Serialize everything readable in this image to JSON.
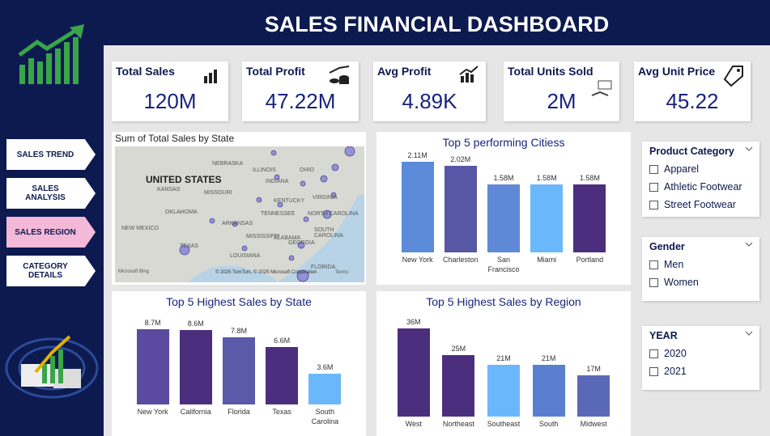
{
  "header": {
    "title": "SALES FINANCIAL DASHBOARD"
  },
  "nav": [
    "SALES TREND",
    "SALES ANALYSIS",
    "SALES REGION",
    "CATEGORY DETAILS"
  ],
  "kpis": [
    {
      "label": "Total Sales",
      "value": "120M"
    },
    {
      "label": "Total Profit",
      "value": "47.22M"
    },
    {
      "label": "Avg Profit",
      "value": "4.89K"
    },
    {
      "label": "Total Units Sold",
      "value": "2M"
    },
    {
      "label": "Avg Unit Price",
      "value": "45.22"
    }
  ],
  "map": {
    "title": "Sum of Total Sales by State",
    "country": "UNITED STATES",
    "states": [
      "NEBRASKA",
      "ILLINOIS",
      "OHIO",
      "INDIANA",
      "KANSAS",
      "MISSOURI",
      "KENTUCKY",
      "VIRGINIA",
      "TENNESSEE",
      "OKLAHOMA",
      "NORTH CAROLINA",
      "ARKANSAS",
      "NEW MEXICO",
      "SOUTH CAROLINA",
      "MISSISSIPPI",
      "ALABAMA",
      "GEORGIA",
      "TEXAS",
      "LOUISIANA",
      "FLORIDA"
    ],
    "logo": "Microsoft Bing",
    "credit": "© 2025 TomTom, © 2025 Microsoft Corporation",
    "terms": "Terms"
  },
  "chart_data": [
    {
      "type": "bar",
      "title": "Top 5 performing Citiess",
      "categories": [
        "New York",
        "Charleston",
        "San Francisco",
        "Miami",
        "Portland"
      ],
      "values": [
        2.11,
        2.02,
        1.58,
        1.58,
        1.58
      ],
      "value_labels": [
        "2.11M",
        "2.02M",
        "1.58M",
        "1.58M",
        "1.58M"
      ],
      "colors": [
        "#5b8bd9",
        "#5757a6",
        "#5f88d6",
        "#6ab8fb",
        "#4b2e7e"
      ]
    },
    {
      "type": "bar",
      "title": "Top 5 Highest Sales by State",
      "categories": [
        "New York",
        "California",
        "Florida",
        "Texas",
        "South Carolina"
      ],
      "values": [
        8.7,
        8.6,
        7.8,
        6.6,
        3.6
      ],
      "value_labels": [
        "8.7M",
        "8.6M",
        "7.8M",
        "6.6M",
        "3.6M"
      ],
      "colors": [
        "#5a4aa0",
        "#4b2e7e",
        "#5a5aa8",
        "#4b2e7e",
        "#6ab8fb"
      ]
    },
    {
      "type": "bar",
      "title": "Top 5 Highest Sales by Region",
      "categories": [
        "West",
        "Northeast",
        "Southeast",
        "South",
        "Midwest"
      ],
      "values": [
        36,
        25,
        21,
        21,
        17
      ],
      "value_labels": [
        "36M",
        "25M",
        "21M",
        "21M",
        "17M"
      ],
      "colors": [
        "#4b2e7e",
        "#4b2e7e",
        "#6ab8fb",
        "#5b7fd0",
        "#5a68b8"
      ]
    }
  ],
  "slicers": [
    {
      "title": "Product Category",
      "options": [
        "Apparel",
        "Athletic Footwear",
        "Street Footwear"
      ]
    },
    {
      "title": "Gender",
      "options": [
        "Men",
        "Women"
      ]
    },
    {
      "title": "YEAR",
      "options": [
        "2020",
        "2021"
      ]
    }
  ]
}
